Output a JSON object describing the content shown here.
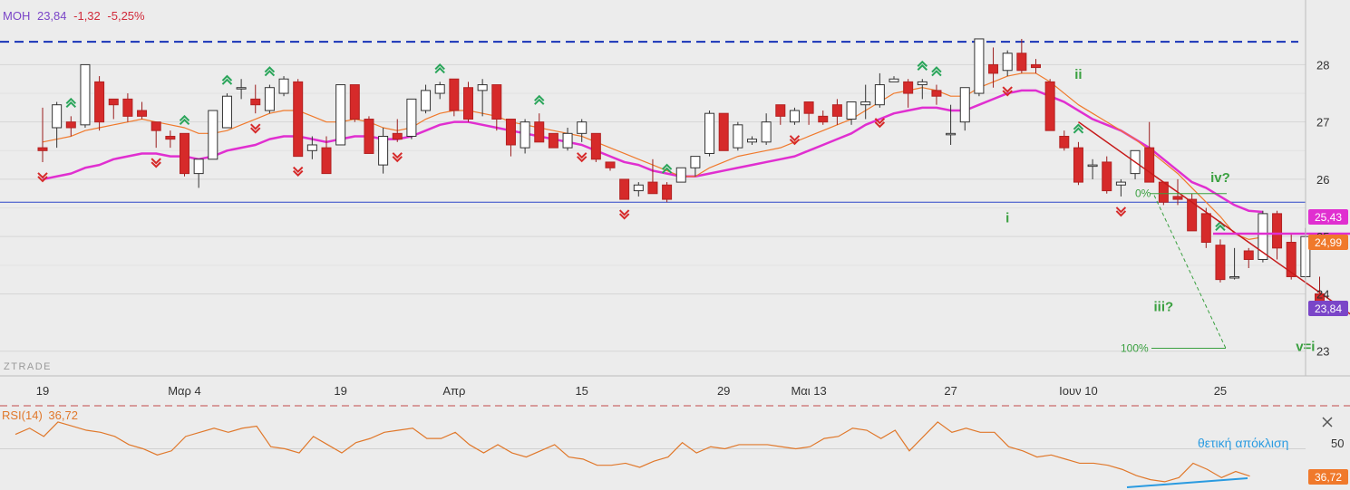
{
  "header": {
    "symbol": "MOH",
    "price": "23,84",
    "change": "-1,32",
    "change_pct": "-5,25%"
  },
  "watermark": "ZTRADE",
  "colors": {
    "background": "#ececec",
    "bull": "#ffffff",
    "bear": "#d62a2a",
    "ma_fast": "#f0792b",
    "ma_slow": "#e02fd0",
    "arrow_up": "#2aa55a",
    "arrow_down": "#d62a2a",
    "wave_label": "#3aa040",
    "resistance": "#1733b8",
    "support": "#2d46c8",
    "trendline": "#c61a1a",
    "rsi_line": "#e0782b",
    "divergence": "#2a9be0",
    "symbol_text": "#7a45c8",
    "change_text": "#d12a3a"
  },
  "chart_data": {
    "type": "candlestick",
    "title": "",
    "x_tick_labels": [
      {
        "label": "19",
        "index": 0
      },
      {
        "label": "Μαρ 4",
        "index": 10
      },
      {
        "label": "19",
        "index": 21
      },
      {
        "label": "Απρ",
        "index": 29
      },
      {
        "label": "15",
        "index": 38
      },
      {
        "label": "29",
        "index": 48
      },
      {
        "label": "Μαι 13",
        "index": 54
      },
      {
        "label": "27",
        "index": 64
      },
      {
        "label": "Ιουν 10",
        "index": 73
      },
      {
        "label": "25",
        "index": 83
      }
    ],
    "y_ticks": [
      23,
      24,
      25,
      26,
      27,
      28
    ],
    "ylim": [
      22.6,
      29.05
    ],
    "ohlc": [
      [
        26.55,
        27.25,
        26.3,
        26.5
      ],
      [
        26.9,
        27.35,
        26.55,
        27.3
      ],
      [
        27.0,
        27.1,
        26.75,
        26.9
      ],
      [
        26.95,
        28.0,
        26.9,
        28.0
      ],
      [
        27.7,
        27.8,
        26.85,
        27.0
      ],
      [
        27.4,
        27.4,
        27.05,
        27.3
      ],
      [
        27.4,
        27.5,
        27.0,
        27.1
      ],
      [
        27.2,
        27.35,
        27.05,
        27.1
      ],
      [
        27.0,
        27.0,
        26.55,
        26.85
      ],
      [
        26.75,
        26.85,
        26.55,
        26.7
      ],
      [
        26.8,
        26.8,
        26.05,
        26.1
      ],
      [
        26.1,
        26.35,
        25.85,
        26.35
      ],
      [
        26.35,
        27.2,
        26.35,
        27.2
      ],
      [
        26.9,
        27.5,
        26.9,
        27.45
      ],
      [
        27.6,
        27.75,
        27.4,
        27.6
      ],
      [
        27.4,
        27.65,
        27.15,
        27.3
      ],
      [
        27.2,
        27.65,
        27.15,
        27.6
      ],
      [
        27.5,
        27.8,
        27.45,
        27.75
      ],
      [
        27.7,
        27.75,
        26.4,
        26.4
      ],
      [
        26.5,
        26.75,
        26.35,
        26.6
      ],
      [
        26.55,
        26.75,
        26.1,
        26.1
      ],
      [
        26.6,
        27.65,
        26.6,
        27.65
      ],
      [
        27.65,
        27.65,
        27.0,
        27.05
      ],
      [
        27.05,
        27.1,
        26.45,
        26.45
      ],
      [
        26.25,
        26.9,
        26.1,
        26.75
      ],
      [
        26.8,
        27.05,
        26.65,
        26.7
      ],
      [
        26.75,
        27.4,
        26.7,
        27.4
      ],
      [
        27.2,
        27.65,
        27.15,
        27.55
      ],
      [
        27.5,
        27.7,
        27.4,
        27.65
      ],
      [
        27.75,
        27.75,
        27.1,
        27.2
      ],
      [
        27.6,
        27.7,
        27.0,
        27.05
      ],
      [
        27.55,
        27.75,
        27.1,
        27.65
      ],
      [
        27.65,
        27.65,
        26.85,
        27.05
      ],
      [
        27.05,
        27.05,
        26.4,
        26.6
      ],
      [
        26.55,
        27.05,
        26.45,
        27.0
      ],
      [
        27.0,
        27.15,
        26.65,
        26.65
      ],
      [
        26.8,
        26.8,
        26.55,
        26.55
      ],
      [
        26.55,
        26.9,
        26.5,
        26.8
      ],
      [
        26.8,
        27.05,
        26.65,
        27.0
      ],
      [
        26.8,
        26.8,
        26.3,
        26.35
      ],
      [
        26.3,
        26.3,
        26.15,
        26.2
      ],
      [
        26.0,
        26.0,
        25.65,
        25.65
      ],
      [
        25.8,
        25.95,
        25.7,
        25.9
      ],
      [
        25.95,
        26.35,
        25.75,
        25.75
      ],
      [
        25.9,
        25.95,
        25.6,
        25.65
      ],
      [
        25.95,
        26.2,
        25.95,
        26.2
      ],
      [
        26.2,
        26.4,
        26.05,
        26.4
      ],
      [
        26.45,
        27.2,
        26.4,
        27.15
      ],
      [
        27.15,
        27.15,
        26.5,
        26.5
      ],
      [
        26.55,
        27.0,
        26.5,
        26.95
      ],
      [
        26.65,
        26.75,
        26.6,
        26.7
      ],
      [
        26.65,
        27.15,
        26.6,
        27.0
      ],
      [
        27.3,
        27.3,
        26.95,
        27.1
      ],
      [
        27.0,
        27.25,
        26.95,
        27.2
      ],
      [
        27.35,
        27.35,
        26.95,
        27.15
      ],
      [
        27.1,
        27.2,
        26.95,
        27.0
      ],
      [
        27.3,
        27.4,
        26.95,
        27.1
      ],
      [
        27.05,
        27.35,
        26.95,
        27.35
      ],
      [
        27.3,
        27.65,
        27.05,
        27.35
      ],
      [
        27.3,
        27.85,
        27.25,
        27.65
      ],
      [
        27.7,
        27.8,
        27.7,
        27.75
      ],
      [
        27.7,
        27.75,
        27.25,
        27.5
      ],
      [
        27.65,
        27.75,
        27.4,
        27.7
      ],
      [
        27.55,
        27.65,
        27.3,
        27.45
      ],
      [
        26.8,
        27.3,
        26.6,
        26.8
      ],
      [
        27.0,
        27.6,
        26.85,
        27.6
      ],
      [
        27.5,
        28.45,
        27.45,
        28.45
      ],
      [
        28.0,
        28.3,
        27.6,
        27.85
      ],
      [
        27.9,
        28.25,
        27.8,
        28.2
      ],
      [
        28.2,
        28.45,
        27.85,
        27.9
      ],
      [
        28.0,
        28.1,
        27.85,
        27.95
      ],
      [
        27.7,
        27.75,
        26.85,
        26.85
      ],
      [
        26.75,
        26.85,
        26.5,
        26.55
      ],
      [
        26.55,
        26.65,
        25.9,
        25.95
      ],
      [
        26.25,
        26.35,
        26.0,
        26.25
      ]
    ],
    "ohlc_tail": [
      [
        26.3,
        26.4,
        25.75,
        25.8
      ],
      [
        25.9,
        26.0,
        25.7,
        25.95
      ],
      [
        26.1,
        26.5,
        26.0,
        26.5
      ],
      [
        26.55,
        27.0,
        25.95,
        25.95
      ],
      [
        25.95,
        25.95,
        25.55,
        25.6
      ],
      [
        25.7,
        26.0,
        25.55,
        25.65
      ],
      [
        25.65,
        25.75,
        25.1,
        25.1
      ],
      [
        25.4,
        25.5,
        24.8,
        24.9
      ],
      [
        24.85,
        24.95,
        24.2,
        24.25
      ],
      [
        24.3,
        24.8,
        24.25,
        24.3
      ],
      [
        24.75,
        24.8,
        24.45,
        24.6
      ],
      [
        24.6,
        25.45,
        24.55,
        25.4
      ],
      [
        25.4,
        25.45,
        24.6,
        24.8
      ],
      [
        24.9,
        25.05,
        24.25,
        24.3
      ],
      [
        24.3,
        25.15,
        24.25,
        25.0
      ],
      [
        24.0,
        24.3,
        23.85,
        23.84
      ]
    ],
    "ma_fast": [
      26.65,
      26.7,
      26.75,
      26.85,
      26.9,
      26.95,
      27.0,
      27.05,
      27.0,
      26.95,
      26.9,
      26.8,
      26.8,
      26.85,
      26.95,
      27.05,
      27.15,
      27.2,
      27.2,
      27.1,
      27.0,
      27.0,
      27.05,
      27.0,
      26.9,
      26.85,
      26.9,
      27.05,
      27.15,
      27.2,
      27.2,
      27.15,
      27.1,
      27.0,
      26.95,
      26.9,
      26.85,
      26.8,
      26.75,
      26.65,
      26.55,
      26.45,
      26.35,
      26.25,
      26.15,
      26.05,
      26.05,
      26.2,
      26.3,
      26.4,
      26.45,
      26.5,
      26.55,
      26.65,
      26.75,
      26.85,
      26.95,
      27.05,
      27.2,
      27.35,
      27.5,
      27.55,
      27.6,
      27.55,
      27.45,
      27.45,
      27.6,
      27.7,
      27.8,
      27.85,
      27.85,
      27.7,
      27.5,
      27.3,
      27.15,
      27.0,
      26.85,
      26.7,
      26.5,
      26.3,
      26.1,
      25.85,
      25.6,
      25.35,
      25.05,
      24.95,
      24.99
    ],
    "ma_slow": [
      26.0,
      26.05,
      26.1,
      26.2,
      26.25,
      26.35,
      26.4,
      26.45,
      26.45,
      26.4,
      26.4,
      26.35,
      26.4,
      26.5,
      26.55,
      26.6,
      26.7,
      26.75,
      26.75,
      26.7,
      26.65,
      26.7,
      26.75,
      26.75,
      26.7,
      26.7,
      26.75,
      26.85,
      26.95,
      27.0,
      27.0,
      26.95,
      26.9,
      26.85,
      26.8,
      26.75,
      26.7,
      26.65,
      26.6,
      26.5,
      26.4,
      26.3,
      26.25,
      26.15,
      26.1,
      26.05,
      26.05,
      26.1,
      26.15,
      26.2,
      26.25,
      26.3,
      26.35,
      26.4,
      26.5,
      26.6,
      26.7,
      26.8,
      26.95,
      27.05,
      27.15,
      27.2,
      27.25,
      27.25,
      27.2,
      27.2,
      27.3,
      27.4,
      27.5,
      27.55,
      27.55,
      27.45,
      27.35,
      27.2,
      27.05,
      26.95,
      26.85,
      26.7,
      26.55,
      26.35,
      26.15,
      25.95,
      25.85,
      25.7,
      25.55,
      25.45,
      25.43
    ],
    "resistance_level": 28.4,
    "support_level": 25.6,
    "trendline": {
      "from": [
        73,
        27.0
      ],
      "to": [
        93,
        23.5
      ]
    },
    "wave_labels": [
      {
        "text": "ii",
        "index": 73,
        "price": 27.75
      },
      {
        "text": "i",
        "index": 68,
        "price": 25.25
      },
      {
        "text": "iii?",
        "index": 79,
        "price": 23.7
      },
      {
        "text": "iv?",
        "index": 83,
        "price": 25.95
      },
      {
        "text": "v=i",
        "index": 89,
        "price": 23.0
      }
    ],
    "fib": {
      "zero_label": "0%",
      "zero_price": 25.75,
      "hundred_label": "100%",
      "hundred_price": 23.05
    },
    "up_arrows_index": [
      2,
      10,
      13,
      16,
      28,
      35,
      44,
      62,
      63,
      73,
      83
    ],
    "down_arrows_index": [
      0,
      8,
      15,
      18,
      25,
      38,
      41,
      53,
      59,
      68,
      76
    ],
    "price_labels": [
      {
        "value": "25,43",
        "color": "#e02fd0"
      },
      {
        "value": "24,99",
        "color": "#f0792b"
      },
      {
        "value": "23,84",
        "color": "#7a45c8"
      }
    ],
    "rsi": {
      "label": "RSI(14)",
      "value": "36,72",
      "level_label": "50",
      "values": [
        57,
        60,
        56,
        63,
        61,
        59,
        58,
        56,
        52,
        50,
        47,
        49,
        56,
        58,
        60,
        58,
        60,
        61,
        51,
        50,
        48,
        56,
        52,
        48,
        53,
        55,
        58,
        59,
        60,
        55,
        55,
        58,
        52,
        48,
        52,
        48,
        46,
        49,
        52,
        46,
        45,
        42,
        42,
        43,
        41,
        44,
        46,
        53,
        48,
        51,
        50,
        52,
        52,
        52,
        51,
        50,
        51,
        55,
        56,
        60,
        59,
        55,
        59,
        49,
        56,
        63,
        58,
        60,
        58,
        58,
        51,
        49,
        46,
        47,
        45,
        43,
        43,
        42,
        40,
        37,
        35,
        34,
        36,
        43,
        40,
        36,
        39,
        36.72
      ],
      "divergence_label": "θετική απόκλιση"
    }
  }
}
